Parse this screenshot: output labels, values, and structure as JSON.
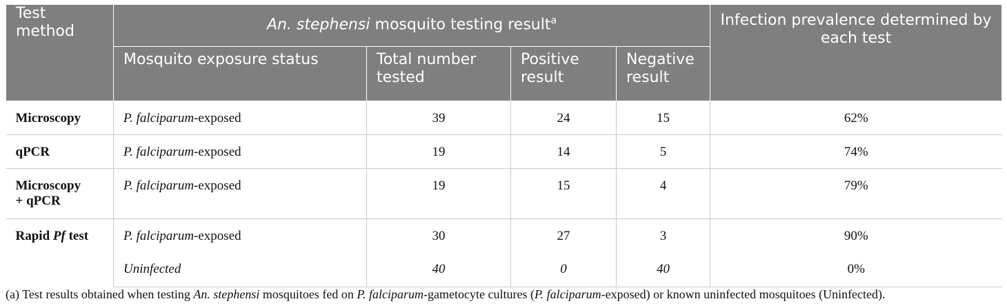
{
  "header": {
    "test_method": "Test method",
    "group_title_species": "An. stephensi",
    "group_title_rest": " mosquito testing result",
    "group_title_sup": "a",
    "prevalence": "Infection prevalence determined by each test",
    "exposure_status": "Mosquito exposure status",
    "total_tested": "Total number tested",
    "positive": "Positive result",
    "negative": "Negative result"
  },
  "rows": [
    {
      "method": "Microscopy",
      "status_italic": "P. falciparum",
      "status_rest": "-exposed",
      "total": "39",
      "positive": "24",
      "negative": "15",
      "prevalence": "62%"
    },
    {
      "method": "qPCR",
      "status_italic": "P. falciparum",
      "status_rest": "-exposed",
      "total": "19",
      "positive": "14",
      "negative": "5",
      "prevalence": "74%"
    },
    {
      "method_line1": "Microscopy",
      "method_line2": "+ qPCR",
      "status_italic": "P. falciparum",
      "status_rest": "-exposed",
      "total": "19",
      "positive": "15",
      "negative": "4",
      "prevalence": "79%"
    },
    {
      "method_pre": "Rapid ",
      "method_italic": "Pf",
      "method_post": " test",
      "status_italic": "P. falciparum",
      "status_rest": "-exposed",
      "total": "30",
      "positive": "27",
      "negative": "3",
      "prevalence": "90%"
    },
    {
      "status_italic": "Uninfected",
      "total": "40",
      "positive": "0",
      "negative": "40",
      "prevalence": "0%"
    }
  ],
  "footnote": {
    "p1": "(a) Test results obtained when testing ",
    "i1": "An. stephensi",
    "p2": " mosquitoes fed on ",
    "i2": "P. falciparum",
    "p3": "-gametocyte cultures (",
    "i3": "P. falciparum",
    "p4": "-exposed) or known uninfected mosquitoes (Uninfected)."
  }
}
